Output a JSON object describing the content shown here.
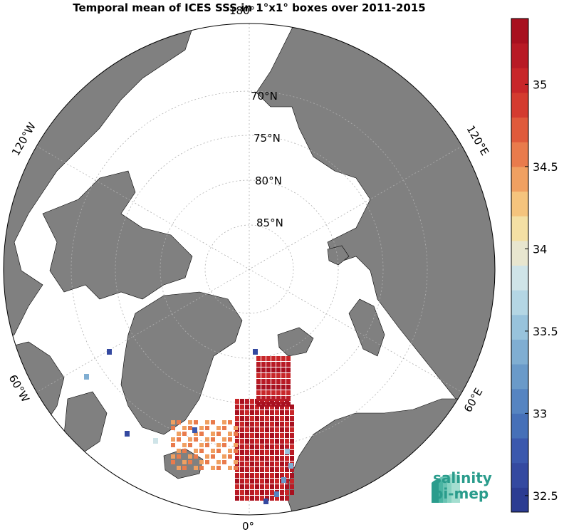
{
  "title": "Temporal mean of ICES SSS in 1°x1° boxes over 2011-2015",
  "map": {
    "projection": "north-polar-stereographic",
    "lat_labels": [
      "70°N",
      "75°N",
      "80°N",
      "85°N"
    ],
    "lon_labels": {
      "top": "180°",
      "bottom": "0°",
      "upper_left": "120°W",
      "upper_right": "120°E",
      "lower_left": "60°W",
      "lower_right": "60°E"
    },
    "land_color": "#808080",
    "ocean_color": "#ffffff"
  },
  "colorbar": {
    "min": 32.4,
    "max": 35.4,
    "tick_labels": [
      "32.5",
      "33",
      "33.5",
      "34",
      "34.5",
      "35"
    ],
    "colors": [
      "#2c3c92",
      "#3449a0",
      "#3b58ad",
      "#4670b8",
      "#5684c1",
      "#6a9ac9",
      "#80aed2",
      "#98c3dc",
      "#b4d6e4",
      "#cfe4e8",
      "#e8e6cf",
      "#f4e0a4",
      "#f5c47d",
      "#f0a061",
      "#e97b4c",
      "#df5a3b",
      "#d43b2f",
      "#c82629",
      "#b81a25",
      "#a8101f"
    ]
  },
  "logo": {
    "line1": "salinity",
    "line2": "pi-mep"
  }
}
